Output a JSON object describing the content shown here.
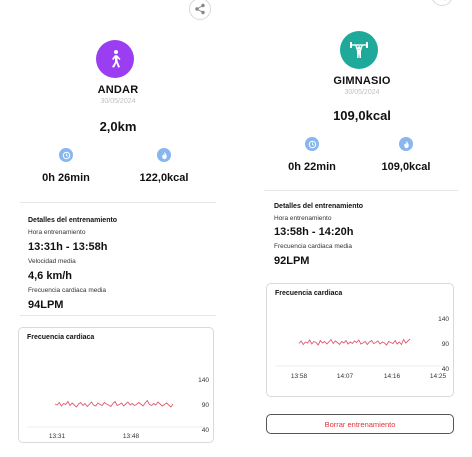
{
  "left": {
    "activity": "ANDAR",
    "date": "30/05/2024",
    "main_value": "2,0km",
    "icon_color": "#9b3df0",
    "stats": [
      {
        "icon": "clock-icon",
        "value": "0h 26min"
      },
      {
        "icon": "flame-icon",
        "value": "122,0kcal"
      }
    ],
    "details": {
      "title": "Detalles del entrenamiento",
      "fields": [
        {
          "label": "Hora entrenamiento",
          "value": "13:31h - 13:58h"
        },
        {
          "label": "Velocidad media",
          "value": "4,6 km/h"
        },
        {
          "label": "Frecuencia cardiaca media",
          "value": "94LPM"
        }
      ]
    },
    "chart_data": {
      "type": "line",
      "title": "Frecuencia cardiaca",
      "x_ticks": [
        "13:31",
        "13:48"
      ],
      "y_ticks": [
        140,
        90,
        40
      ],
      "ylim": [
        40,
        140
      ],
      "series": [
        {
          "values": [
            92,
            90,
            95,
            88,
            93,
            91,
            97,
            89,
            94,
            90,
            86,
            92,
            95,
            89,
            93,
            87,
            91,
            96,
            90,
            88,
            94,
            91,
            89,
            95,
            92,
            90,
            87,
            93,
            97,
            89,
            91,
            94,
            88,
            92,
            96,
            90,
            93,
            89,
            91,
            95,
            92,
            88,
            94,
            99,
            91,
            89,
            93,
            90,
            96,
            92,
            88,
            91,
            94,
            90,
            86,
            92
          ]
        }
      ],
      "line_color": "#e05a6c"
    }
  },
  "right": {
    "activity": "GIMNASIO",
    "date": "30/05/2024",
    "main_value": "109,0kcal",
    "icon_color": "#1fa99a",
    "stats": [
      {
        "icon": "clock-icon",
        "value": "0h 22min"
      },
      {
        "icon": "flame-icon",
        "value": "109,0kcal"
      }
    ],
    "details": {
      "title": "Detalles del entrenamiento",
      "fields": [
        {
          "label": "Hora entrenamiento",
          "value": "13:58h - 14:20h"
        },
        {
          "label": "Frecuencia cardiaca media",
          "value": "92LPM"
        }
      ]
    },
    "chart_data": {
      "type": "line",
      "title": "Frecuencia cardiaca",
      "x_ticks": [
        "13:58",
        "14:07",
        "14:16",
        "14:25"
      ],
      "y_ticks": [
        140,
        90,
        40
      ],
      "ylim": [
        40,
        140
      ],
      "series": [
        {
          "values": [
            91,
            96,
            89,
            94,
            92,
            98,
            90,
            95,
            93,
            88,
            97,
            92,
            95,
            90,
            94,
            99,
            91,
            96,
            93,
            89,
            95,
            92,
            97,
            90,
            94,
            91,
            96,
            93,
            98,
            90,
            92,
            95,
            89,
            94,
            97,
            91,
            93,
            96,
            90,
            94,
            92,
            88,
            95,
            93,
            91,
            97,
            90,
            94,
            89,
            99,
            92,
            96,
            100
          ]
        }
      ],
      "line_color": "#e05a6c"
    },
    "delete_button": "Borrar entrenamiento"
  },
  "colors": {
    "stat_icon": "#88b6ee",
    "divider": "#e6e6e6",
    "delete_text": "#e0343c"
  }
}
